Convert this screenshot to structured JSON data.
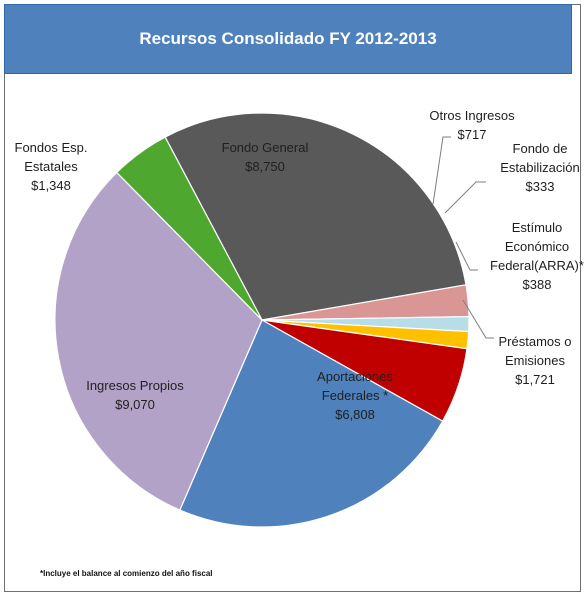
{
  "chart_data": {
    "type": "pie",
    "title": "Recursos Consolidado FY 2012-2013",
    "footnote": "*Incluye el balance al comienzo del año fiscal",
    "slices": [
      {
        "name": "Fondo General",
        "label_lines": [
          "Fondo General"
        ],
        "value_text": "$8,750",
        "value": 8750,
        "color": "#595959"
      },
      {
        "name": "Otros Ingresos",
        "label_lines": [
          "Otros Ingresos"
        ],
        "value_text": "$717",
        "value": 717,
        "color": "#d99694"
      },
      {
        "name": "Fondo de Estabilización",
        "label_lines": [
          "Fondo de",
          "Estabilización"
        ],
        "value_text": "$333",
        "value": 333,
        "color": "#b7dee8"
      },
      {
        "name": "Estímulo Económico Federal(ARRA)*",
        "label_lines": [
          "Estímulo",
          "Económico",
          "Federal(ARRA)*"
        ],
        "value_text": "$388",
        "value": 388,
        "color": "#ffc000"
      },
      {
        "name": "Préstamos o Emisiones",
        "label_lines": [
          "Préstamos o",
          "Emisiones"
        ],
        "value_text": "$1,721",
        "value": 1721,
        "color": "#c00000"
      },
      {
        "name": "Aportaciones Federales *",
        "label_lines": [
          "Aportaciones",
          "Federales  *"
        ],
        "value_text": "$6,808",
        "value": 6808,
        "color": "#4f81bd"
      },
      {
        "name": "Ingresos Propios",
        "label_lines": [
          "Ingresos Propios"
        ],
        "value_text": "$9,070",
        "value": 9070,
        "color": "#b3a2c7"
      },
      {
        "name": "Fondos Esp. Estatales",
        "label_lines": [
          "Fondos Esp.",
          "Estatales"
        ],
        "value_text": "$1,348",
        "value": 1348,
        "color": "#4ea72e"
      }
    ],
    "colors": {
      "title_background": "#4f81bd",
      "slice_border": "#ffffff",
      "leader_line": "#7f7f7f"
    }
  }
}
